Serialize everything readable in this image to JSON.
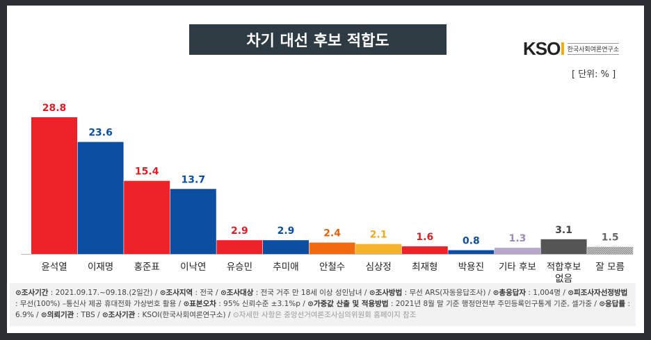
{
  "title": "차기 대선 후보 적합도",
  "logo": {
    "brand": "KSOI",
    "name": "한국사회여론연구소"
  },
  "unit": "[ 단위: % ]",
  "chart_data": {
    "type": "bar",
    "title": "차기 대선 후보 적합도",
    "ylabel": "%",
    "ylim": [
      0,
      30
    ],
    "categories": [
      "윤석열",
      "이재명",
      "홍준표",
      "이낙연",
      "유승민",
      "추미애",
      "안철수",
      "심상정",
      "최재형",
      "박용진",
      "기타 후보",
      "적합후보 없음",
      "잘 모름"
    ],
    "values": [
      28.8,
      23.6,
      15.4,
      13.7,
      2.9,
      2.9,
      2.4,
      2.1,
      1.6,
      0.8,
      1.3,
      3.1,
      1.5
    ],
    "colors": [
      "#ee2229",
      "#0b4ea2",
      "#ee2229",
      "#0b4ea2",
      "#ee2229",
      "#0b4ea2",
      "#f26a10",
      "#f7b32b",
      "#ee2229",
      "#0b4ea2",
      "#b8a7cc",
      "#555555",
      "#aaaaaa"
    ],
    "label_colors": [
      "#d91f26",
      "#0b4ea2",
      "#d91f26",
      "#0b4ea2",
      "#d91f26",
      "#0b4ea2",
      "#e0600c",
      "#f0a81d",
      "#d91f26",
      "#0b4ea2",
      "#9c8ab5",
      "#444444",
      "#666666"
    ]
  },
  "footnote": [
    {
      "k": "⊙조사기간",
      "v": " : 2021.09.17.~09.18.(2일간)  / "
    },
    {
      "k": "⊙조사지역",
      "v": " : 전국 / "
    },
    {
      "k": "⊙조사대상",
      "v": " : 전국 거주 만 18세 이상 성인남녀 / "
    },
    {
      "k": "⊙조사방법",
      "v": " : 무선 ARS(자동응답조사) / "
    },
    {
      "k": "⊙총응답자",
      "v": " : 1,004명 / "
    },
    {
      "k": "⊙피조사자선정방법",
      "v": " : 무선(100%) –통신사 제공 휴대전화 가상번호 활용 / "
    },
    {
      "k": "⊙표본오차",
      "v": " : 95% 신뢰수준 ±3.1%p / "
    },
    {
      "k": "⊙가중값 산출 및 적용방법",
      "v": " : 2021년 8월 말 기준 행정안전부 주민등록인구통계 기준, 셀가중 / "
    },
    {
      "k": "⊙응답률",
      "v": " : 6.9% / "
    },
    {
      "k": "⊙의뢰기관",
      "v": " : TBS / "
    },
    {
      "k": "⊙조사기관",
      "v": " : KSOI(한국사회여론연구소) / "
    },
    {
      "k": "",
      "v": "⊙자세한 사항은 중앙선거여론조사심의위원회 홈페이지 참조"
    }
  ]
}
